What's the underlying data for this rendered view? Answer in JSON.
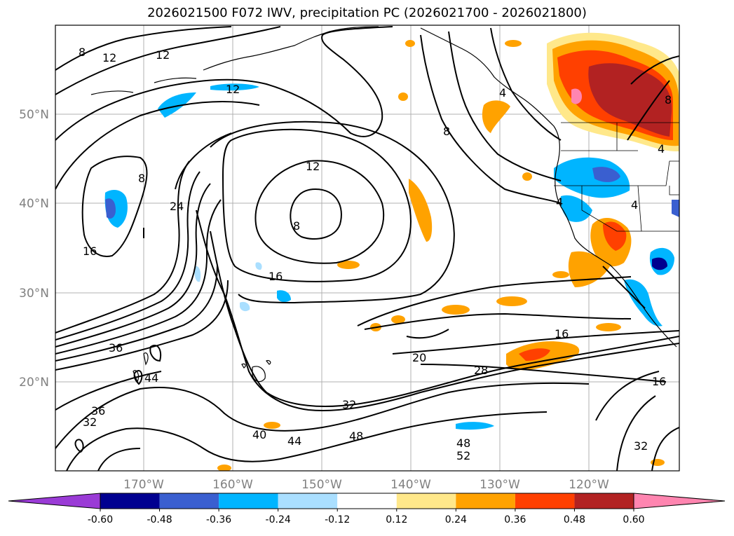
{
  "title": "2026021500 F072 IWV, precipitation PC (2026021700 - 2026021800)",
  "map": {
    "lat_labels": [
      "50°N",
      "40°N",
      "30°N",
      "20°N"
    ],
    "lon_labels": [
      "170°W",
      "160°W",
      "150°W",
      "140°W",
      "130°W",
      "120°W"
    ],
    "contour_labels": [
      "8",
      "12",
      "12",
      "12",
      "12",
      "8",
      "4",
      "8",
      "4",
      "4",
      "8",
      "4",
      "16",
      "24",
      "8",
      "16",
      "36",
      "44",
      "36",
      "32",
      "40",
      "44",
      "32",
      "48",
      "28",
      "20",
      "48",
      "52",
      "32",
      "16",
      "16"
    ]
  },
  "colorbar": {
    "ticks": [
      "-0.60",
      "-0.48",
      "-0.36",
      "-0.24",
      "-0.12",
      "0.12",
      "0.24",
      "0.36",
      "0.48",
      "0.60"
    ],
    "colors": {
      "under": "#9a3bd6",
      "bins": [
        "#000090",
        "#3a5fd0",
        "#00b5ff",
        "#aadfff",
        "#ffffff",
        "#ffe88a",
        "#ffa200",
        "#ff4000",
        "#b22222",
        "#ff85b0"
      ],
      "over": "#ff85b0"
    }
  }
}
